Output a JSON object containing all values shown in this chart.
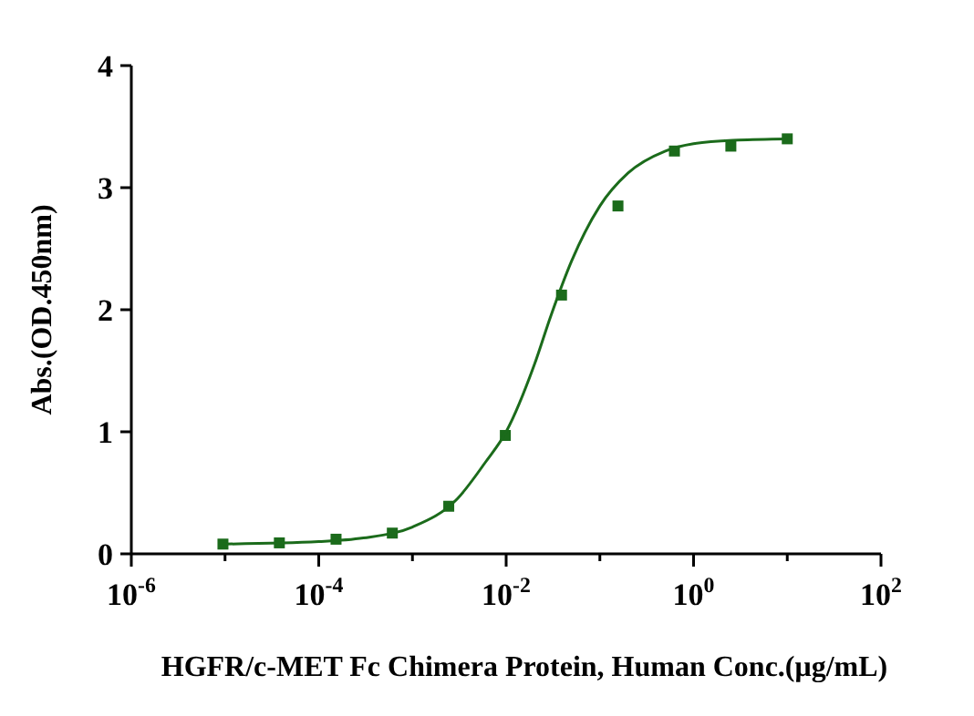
{
  "chart_data": {
    "type": "scatter",
    "xlabel": "HGFR/c-MET Fc Chimera Protein, Human Conc.(μg/mL)",
    "ylabel": "Abs.(OD.450nm)",
    "log": "x",
    "xlim": [
      1e-06,
      100
    ],
    "xticks": [
      {
        "value": 1e-06,
        "label": "10$^{-6}$"
      },
      {
        "value": 1e-05,
        "label": null
      },
      {
        "value": 0.0001,
        "label": "10$^{-4}$"
      },
      {
        "value": 0.001,
        "label": null
      },
      {
        "value": 0.01,
        "label": "10$^{-2}$"
      },
      {
        "value": 0.1,
        "label": null
      },
      {
        "value": 1,
        "label": "10$^{0}$"
      },
      {
        "value": 10,
        "label": null
      },
      {
        "value": 100,
        "label": "10$^{2}$"
      }
    ],
    "ylim": [
      0,
      4
    ],
    "yticks": [
      0,
      1,
      2,
      3,
      4
    ],
    "grid": false,
    "series": [
      {
        "marker": "square",
        "color": "#1b6b1b",
        "x": [
          9.5e-06,
          3.8e-05,
          0.000153,
          0.00061,
          0.00244,
          0.0098,
          0.039,
          0.156,
          0.625,
          2.5,
          10
        ],
        "values": [
          0.08,
          0.09,
          0.12,
          0.17,
          0.39,
          0.97,
          2.12,
          2.85,
          3.3,
          3.34,
          3.4
        ]
      },
      {
        "type": "line",
        "marker": "none",
        "line_style": "solid",
        "color": "#1b6b1b",
        "x": [
          9.5e-06,
          0.0001,
          0.0003,
          0.001,
          0.003,
          0.006,
          0.01,
          0.02,
          0.03,
          0.05,
          0.1,
          0.2,
          0.5,
          1,
          3,
          10
        ],
        "values": [
          0.08,
          0.1,
          0.13,
          0.22,
          0.45,
          0.75,
          1.0,
          1.55,
          1.95,
          2.4,
          2.85,
          3.12,
          3.3,
          3.36,
          3.39,
          3.4
        ]
      }
    ]
  }
}
